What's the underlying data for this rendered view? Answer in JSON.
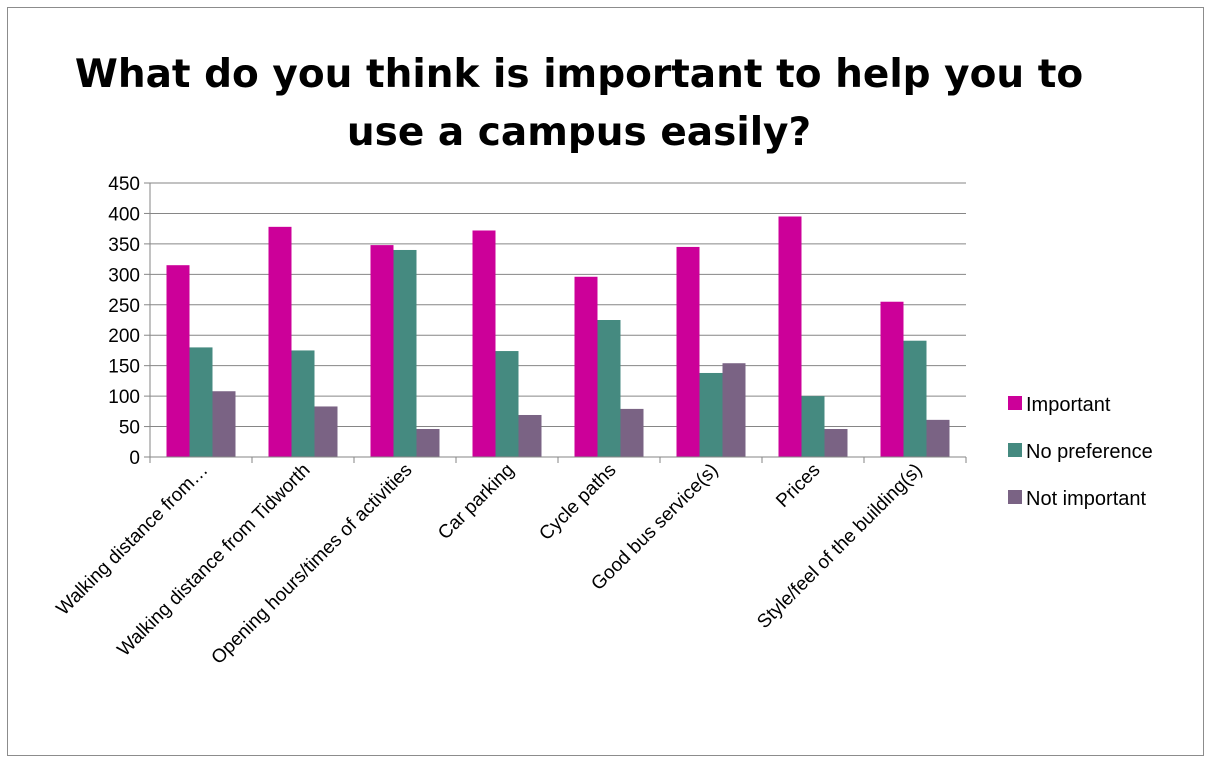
{
  "chart_data": {
    "type": "bar",
    "title": "What do you think is important to help you to use a campus easily?",
    "title_lines": [
      "What do you think is important to help you to",
      "use a campus easily?"
    ],
    "categories": [
      "Walking distance from…",
      "Walking distance from Tidworth",
      "Opening hours/times of activities",
      "Car parking",
      "Cycle paths",
      "Good bus service(s)",
      "Prices",
      "Style/feel of the building(s)"
    ],
    "series": [
      {
        "name": "Important",
        "color": "#cc0099",
        "values": [
          315,
          378,
          348,
          372,
          296,
          345,
          395,
          255
        ]
      },
      {
        "name": "No preference",
        "color": "#458a80",
        "values": [
          180,
          175,
          340,
          174,
          225,
          138,
          100,
          191
        ]
      },
      {
        "name": "Not important",
        "color": "#7a6384",
        "values": [
          108,
          83,
          46,
          69,
          79,
          154,
          46,
          61
        ]
      }
    ],
    "ylim": [
      0,
      450
    ],
    "yticks": [
      0,
      50,
      100,
      150,
      200,
      250,
      300,
      350,
      400,
      450
    ],
    "grid": true,
    "legend_position": "right",
    "xlabel": "",
    "ylabel": ""
  }
}
